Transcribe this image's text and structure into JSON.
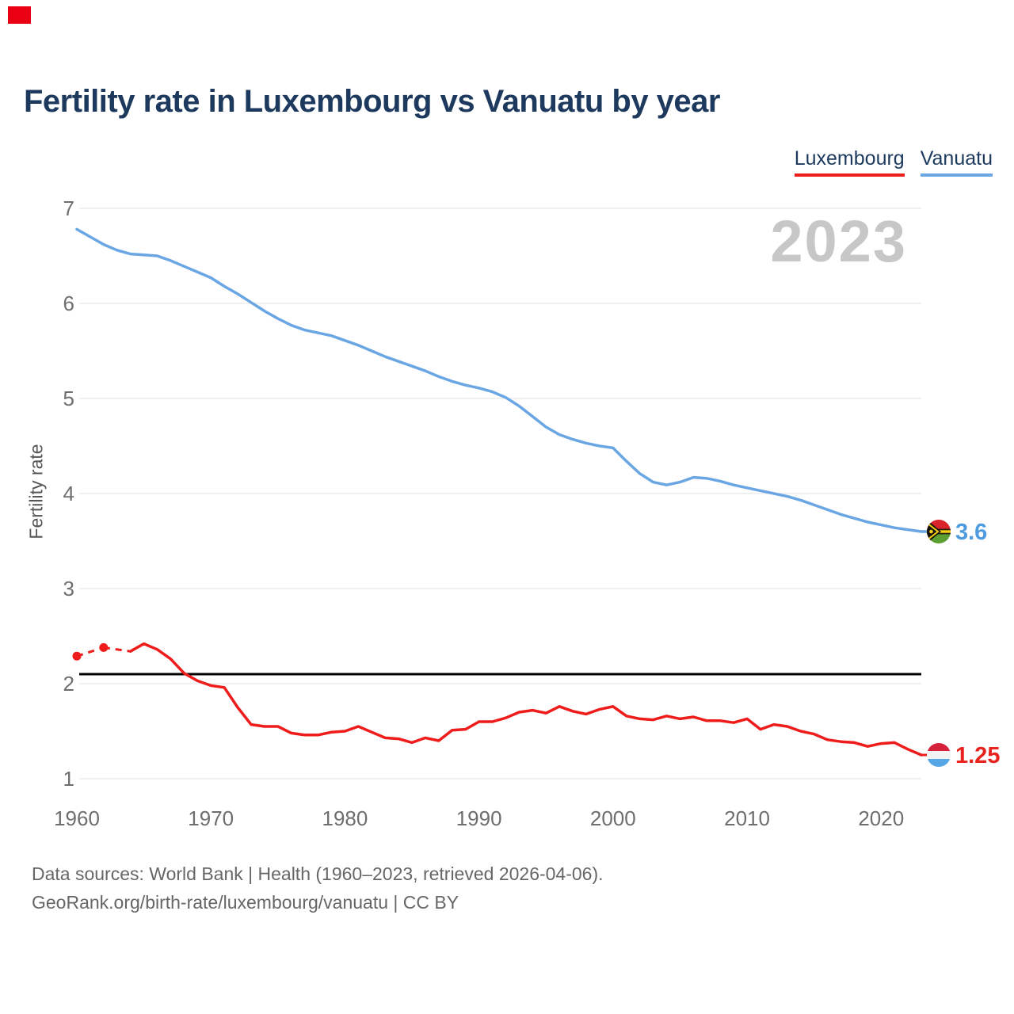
{
  "brand": {
    "color": "#e90013"
  },
  "header": {
    "title": "Fertility rate in Luxembourg vs Vanuatu by year"
  },
  "legend": [
    {
      "label": "Luxembourg",
      "color": "#ee1c1a"
    },
    {
      "label": "Vanuatu",
      "color": "#6aa6e4"
    }
  ],
  "watermark": "2023",
  "chart_data": {
    "type": "line",
    "title": "Fertility rate in Luxembourg vs Vanuatu by year",
    "xlabel": "",
    "ylabel": "Fertility rate",
    "xlim": [
      1960,
      2023
    ],
    "ylim": [
      1,
      7
    ],
    "x_ticks": [
      1960,
      1970,
      1980,
      1990,
      2000,
      2010,
      2020
    ],
    "y_ticks": [
      7,
      6,
      5,
      4,
      3,
      2,
      1
    ],
    "grid": "horizontal",
    "legend_position": "top-right",
    "reference_line": {
      "value": 2.1,
      "color": "#000000"
    },
    "years": [
      1960,
      1961,
      1962,
      1963,
      1964,
      1965,
      1966,
      1967,
      1968,
      1969,
      1970,
      1971,
      1972,
      1973,
      1974,
      1975,
      1976,
      1977,
      1978,
      1979,
      1980,
      1981,
      1982,
      1983,
      1984,
      1985,
      1986,
      1987,
      1988,
      1989,
      1990,
      1991,
      1992,
      1993,
      1994,
      1995,
      1996,
      1997,
      1998,
      1999,
      2000,
      2001,
      2002,
      2003,
      2004,
      2005,
      2006,
      2007,
      2008,
      2009,
      2010,
      2011,
      2012,
      2013,
      2014,
      2015,
      2016,
      2017,
      2018,
      2019,
      2020,
      2021,
      2022,
      2023
    ],
    "series": [
      {
        "id": "luxembourg",
        "name": "Luxembourg",
        "color": "#ee1c1a",
        "end_label": "1.25",
        "end_value": 1.25,
        "values": [
          2.29,
          null,
          2.38,
          null,
          2.34,
          2.42,
          2.36,
          2.26,
          2.11,
          2.03,
          1.98,
          1.96,
          1.75,
          1.57,
          1.55,
          1.55,
          1.48,
          1.46,
          1.46,
          1.49,
          1.5,
          1.55,
          1.49,
          1.43,
          1.42,
          1.38,
          1.43,
          1.4,
          1.51,
          1.52,
          1.6,
          1.6,
          1.64,
          1.7,
          1.72,
          1.69,
          1.76,
          1.71,
          1.68,
          1.73,
          1.76,
          1.66,
          1.63,
          1.62,
          1.66,
          1.63,
          1.65,
          1.61,
          1.61,
          1.59,
          1.63,
          1.52,
          1.57,
          1.55,
          1.5,
          1.47,
          1.41,
          1.39,
          1.38,
          1.34,
          1.37,
          1.38,
          1.31,
          1.25
        ]
      },
      {
        "id": "vanuatu",
        "name": "Vanuatu",
        "color": "#6aa6e4",
        "end_label": "3.6",
        "end_value": 3.6,
        "values": [
          6.78,
          6.7,
          6.62,
          6.56,
          6.52,
          6.51,
          6.5,
          6.45,
          6.39,
          6.33,
          6.27,
          6.18,
          6.1,
          6.01,
          5.92,
          5.84,
          5.77,
          5.72,
          5.69,
          5.66,
          5.61,
          5.56,
          5.5,
          5.44,
          5.39,
          5.34,
          5.29,
          5.23,
          5.18,
          5.14,
          5.11,
          5.07,
          5.01,
          4.92,
          4.81,
          4.7,
          4.62,
          4.57,
          4.53,
          4.5,
          4.48,
          4.34,
          4.21,
          4.12,
          4.09,
          4.12,
          4.17,
          4.16,
          4.13,
          4.09,
          4.06,
          4.03,
          4.0,
          3.97,
          3.93,
          3.88,
          3.83,
          3.78,
          3.74,
          3.7,
          3.67,
          3.64,
          3.62,
          3.6
        ]
      }
    ]
  },
  "footer": {
    "line1": "Data sources: World Bank | Health (1960–2023, retrieved 2026-04-06).",
    "line2": "GeoRank.org/birth-rate/luxembourg/vanuatu | CC BY"
  }
}
